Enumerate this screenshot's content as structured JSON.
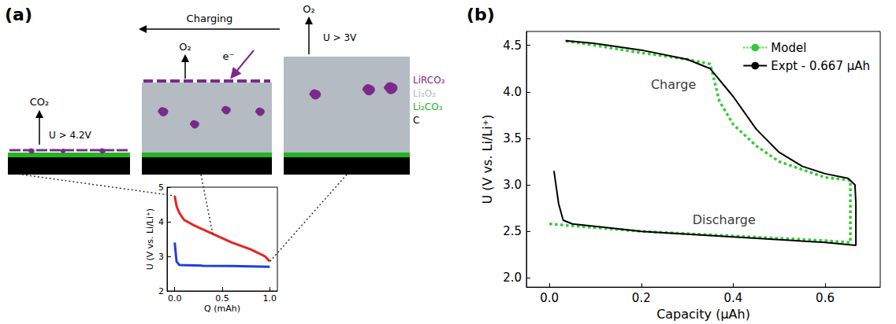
{
  "panel_labels": [
    "(a)",
    "(b)"
  ],
  "diagram": {
    "direction_label": "Charging",
    "stages": [
      {
        "gas": "CO₂",
        "voltage": "U > 4.2V"
      },
      {
        "gas": "O₂",
        "electron": "e⁻"
      },
      {
        "gas": "O₂",
        "voltage": "U > 3V"
      }
    ],
    "layers": [
      {
        "label": "LiRCO₃",
        "color": "#7b2a8c"
      },
      {
        "label": "Li₂O₂",
        "color": "#b4bbc2"
      },
      {
        "label": "Li₂CO₃",
        "color": "#22b422"
      },
      {
        "label": "C",
        "color": "#000000"
      }
    ]
  },
  "chart_data": [
    {
      "type": "line",
      "x_label": "Q (mAh)",
      "y_label": "U (V vs. Li/Li⁺)",
      "xlim": [
        -0.08,
        1.08
      ],
      "ylim": [
        2,
        5
      ],
      "xticks": [
        {
          "value": 0,
          "label": "0.0"
        },
        0.5,
        {
          "value": 1,
          "label": "1.0"
        }
      ],
      "yticks": [
        2,
        3,
        4,
        5
      ],
      "grid": false,
      "series": [
        {
          "color": "#e8231f",
          "line_style": "solid",
          "x": [
            1.0,
            0.95,
            0.8,
            0.6,
            0.4,
            0.2,
            0.1,
            0.05,
            0.02,
            0.0
          ],
          "values": [
            2.85,
            3.0,
            3.2,
            3.4,
            3.65,
            3.9,
            4.05,
            4.25,
            4.45,
            4.75
          ]
        },
        {
          "color": "#1f3fe0",
          "line_style": "solid",
          "x": [
            0.0,
            0.02,
            0.05,
            0.3,
            0.6,
            1.0
          ],
          "values": [
            3.4,
            2.85,
            2.75,
            2.73,
            2.72,
            2.7
          ]
        }
      ]
    },
    {
      "type": "line",
      "x_label": "Capacity (µAh)",
      "y_label": "U (V vs. Li/Li⁺)",
      "xlim": [
        -0.05,
        0.72
      ],
      "ylim": [
        1.9,
        4.65
      ],
      "xticks": [
        {
          "value": 0,
          "label": "0.0"
        },
        0.2,
        0.4,
        0.6
      ],
      "yticks": [
        {
          "value": 2,
          "label": "2.0"
        },
        2.5,
        {
          "value": 3,
          "label": "3.0"
        },
        3.5,
        {
          "value": 4,
          "label": "4.0"
        },
        4.5
      ],
      "grid": false,
      "legend": "upper right",
      "series": [
        {
          "name": "Model",
          "color": "#33cc33",
          "line_style": "dotted",
          "x": [
            0.0,
            0.2,
            0.4,
            0.6,
            0.655,
            0.655,
            0.6,
            0.5,
            0.45,
            0.4,
            0.37,
            0.35,
            0.3,
            0.2,
            0.1,
            0.03
          ],
          "values": [
            2.58,
            2.5,
            2.45,
            2.4,
            2.38,
            3.05,
            3.08,
            3.25,
            3.42,
            3.65,
            3.9,
            4.3,
            4.35,
            4.42,
            4.5,
            4.55
          ]
        },
        {
          "name": "Expt - 0.667 µAh",
          "color": "#000000",
          "line_style": "solid",
          "x": [
            0.01,
            0.02,
            0.03,
            0.05,
            0.2,
            0.4,
            0.6,
            0.667,
            0.667,
            0.665,
            0.65,
            0.6,
            0.55,
            0.5,
            0.45,
            0.4,
            0.35,
            0.3,
            0.2,
            0.1,
            0.035
          ],
          "values": [
            3.15,
            2.8,
            2.62,
            2.58,
            2.5,
            2.44,
            2.38,
            2.35,
            2.8,
            3.0,
            3.07,
            3.12,
            3.2,
            3.35,
            3.6,
            3.95,
            4.25,
            4.35,
            4.45,
            4.52,
            4.55
          ]
        }
      ],
      "annotations": [
        {
          "text": "Charge",
          "x": 0.27,
          "y": 4.08
        },
        {
          "text": "Discharge",
          "x": 0.38,
          "y": 2.62
        }
      ]
    }
  ]
}
